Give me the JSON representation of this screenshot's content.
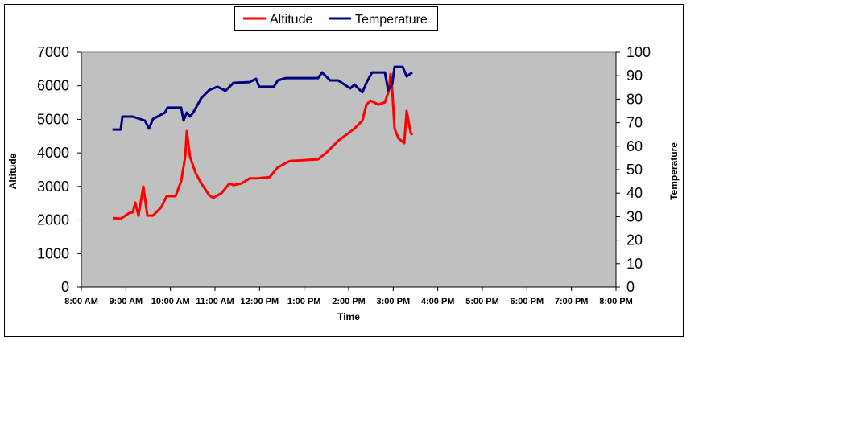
{
  "chart_data": {
    "type": "line",
    "title": "",
    "xlabel": "Time",
    "ylabel": "Altitude",
    "y2label": "Temperature",
    "xlim": [
      8,
      20
    ],
    "ylim": [
      0,
      7000
    ],
    "y2lim": [
      0,
      100
    ],
    "grid": false,
    "legend_position": "top-center",
    "x_ticks": [
      "8:00 AM",
      "9:00 AM",
      "10:00 AM",
      "11:00 AM",
      "12:00 PM",
      "1:00 PM",
      "2:00 PM",
      "3:00 PM",
      "4:00 PM",
      "5:00 PM",
      "6:00 PM",
      "7:00 PM",
      "8:00 PM"
    ],
    "y_ticks": [
      "0",
      "1000",
      "2000",
      "3000",
      "4000",
      "5000",
      "6000",
      "7000"
    ],
    "y2_ticks": [
      "0",
      "10",
      "20",
      "30",
      "40",
      "50",
      "60",
      "70",
      "80",
      "90",
      "100"
    ],
    "series": [
      {
        "name": "Altitude",
        "axis": "left",
        "color": "#ff0000",
        "x": [
          8.705,
          8.886,
          9.066,
          9.157,
          9.211,
          9.283,
          9.392,
          9.482,
          9.609,
          9.789,
          9.916,
          10.115,
          10.241,
          10.331,
          10.368,
          10.44,
          10.566,
          10.693,
          10.874,
          10.964,
          11.145,
          11.326,
          11.416,
          11.597,
          11.777,
          11.958,
          12.229,
          12.41,
          12.681,
          13.314,
          13.494,
          13.765,
          14.127,
          14.308,
          14.398,
          14.489,
          14.669,
          14.814,
          14.904,
          14.94,
          14.976,
          15.03,
          15.121,
          15.247,
          15.302,
          15.392,
          15.428
        ],
        "y": [
          2060,
          2040,
          2200,
          2230,
          2520,
          2130,
          3000,
          2130,
          2130,
          2370,
          2710,
          2710,
          3160,
          3880,
          4650,
          3880,
          3400,
          3090,
          2730,
          2660,
          2800,
          3090,
          3040,
          3090,
          3240,
          3240,
          3280,
          3570,
          3760,
          3810,
          4000,
          4360,
          4720,
          4960,
          5440,
          5560,
          5440,
          5510,
          5870,
          6350,
          5920,
          4720,
          4430,
          4290,
          5250,
          4600,
          4530
        ]
      },
      {
        "name": "Temperature",
        "axis": "right",
        "color": "#000080",
        "x": [
          8.7,
          8.886,
          8.922,
          9.157,
          9.428,
          9.518,
          9.609,
          9.88,
          9.934,
          10.241,
          10.295,
          10.368,
          10.44,
          10.512,
          10.693,
          10.874,
          11.054,
          11.235,
          11.416,
          11.777,
          11.922,
          11.994,
          12.319,
          12.41,
          12.591,
          13.314,
          13.404,
          13.585,
          13.765,
          14.036,
          14.127,
          14.308,
          14.398,
          14.524,
          14.814,
          14.886,
          14.976,
          15.03,
          15.211,
          15.302,
          15.428
        ],
        "y": [
          67.1,
          67.1,
          72.6,
          72.6,
          70.9,
          67.5,
          71.6,
          74.3,
          76.4,
          76.4,
          70.9,
          74.3,
          72.6,
          74.3,
          80.5,
          83.9,
          85.3,
          83.6,
          87.0,
          87.3,
          88.7,
          85.3,
          85.3,
          88.0,
          89.0,
          89.0,
          91.4,
          88.0,
          88.0,
          84.6,
          86.3,
          82.9,
          87.0,
          91.4,
          91.4,
          83.9,
          86.3,
          93.8,
          93.8,
          89.7,
          91.4
        ]
      }
    ]
  }
}
